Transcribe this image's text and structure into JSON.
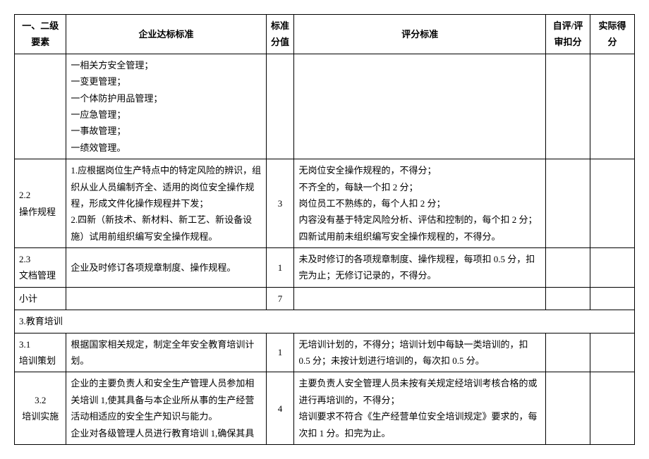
{
  "headers": {
    "element": "一、二级要素",
    "standard": "企业达标标准",
    "score": "标准分值",
    "criteria": "评分标准",
    "deduct": "自评/评审扣分",
    "actual": "实际得分"
  },
  "rows": {
    "r1_standard": "一相关方安全管理；\n一变更管理；\n一个体防护用品管理；\n一应急管理；\n一事故管理；\n一绩效管理。",
    "r2_element": "2.2\n操作规程",
    "r2_standard": "1.应根据岗位生产特点中的特定风险的辨识，组织从业人员编制齐全、适用的岗位安全操作规程，形成文件化操作规程并下发；\n2.四新（新技术、新材料、新工艺、新设备设施）试用前组织编写安全操作规程。",
    "r2_score": "3",
    "r2_criteria": "无岗位安全操作规程的，不得分；\n不齐全的，每缺一个扣 2 分；\n岗位员工不熟练的，每个人扣 2 分；\n内容没有基于特定风险分析、评估和控制的，每个扣 2 分；四新试用前未组织编写安全操作规程的，不得分。",
    "r3_element": "2.3\n文档管理",
    "r3_standard": "企业及时修订各项规章制度、操作规程。",
    "r3_score": "1",
    "r3_criteria": "未及时修订的各项规章制度、操作规程，每项扣 0.5 分，扣完为止；无修订记录的，不得分。",
    "r4_element": "小计",
    "r4_score": "7",
    "r5_section": "3.教育培训",
    "r6_element": "3.1\n培训策划",
    "r6_standard": "根据国家相关规定，制定全年安全教育培训计划。",
    "r6_score": "1",
    "r6_criteria": "无培训计划的，不得分；培训计划中每缺一类培训的，扣 0.5 分；未按计划进行培训的，每次扣 0.5 分。",
    "r7_element": "3.2\n培训实施",
    "r7_standard": "企业的主要负责人和安全生产管理人员参加相关培训 1,使其具备与本企业所从事的生产经营活动相适应的安全生产知识与能力。\n企业对各级管理人员进行教育培训 1,确保其具",
    "r7_score": "4",
    "r7_criteria": "主要负责人安全管理人员未按有关规定经培训考核合格的或进行再培训的，不得分；\n培训要求不符合《生产经营单位安全培训规定》要求的，每次扣 1 分。扣完为止。"
  }
}
